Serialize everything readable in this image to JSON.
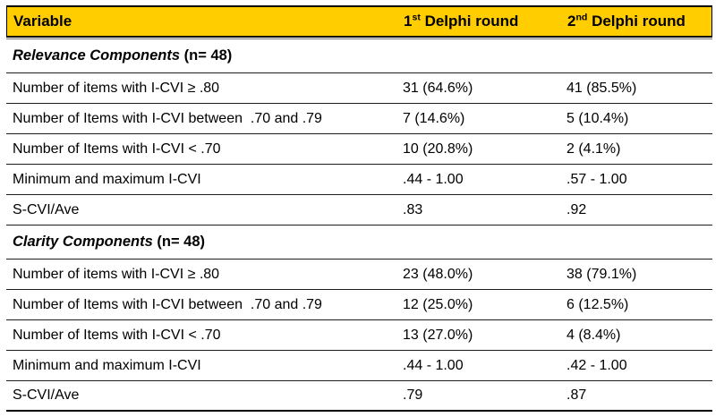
{
  "table": {
    "colors": {
      "header_bg": "#FFCD00",
      "border": "#000000",
      "row_rule": "#1c1c1c"
    },
    "header": {
      "variable_label": "Variable",
      "round1": {
        "num": "1",
        "sup": "st",
        "rest": " Delphi round"
      },
      "round2": {
        "num": "2",
        "sup": "nd",
        "rest": " Delphi round"
      }
    },
    "sections": [
      {
        "title_italic": "Relevance Components",
        "title_rest": " (n= 48)",
        "rows": [
          {
            "variable": "Number of items with I-CVI ≥ .80",
            "round1": "31 (64.6%)",
            "round2": "41 (85.5%)"
          },
          {
            "variable": "Number of Items with I-CVI between  .70 and .79",
            "round1": "7 (14.6%)",
            "round2": "5 (10.4%)"
          },
          {
            "variable": "Number of Items with I-CVI < .70",
            "round1": "10 (20.8%)",
            "round2": "2 (4.1%)"
          },
          {
            "variable": "Minimum and maximum I-CVI",
            "round1": ".44 - 1.00",
            "round2": ".57 - 1.00"
          },
          {
            "variable": "S-CVI/Ave",
            "round1": ".83",
            "round2": ".92"
          }
        ]
      },
      {
        "title_italic": "Clarity Components",
        "title_rest": " (n= 48)",
        "rows": [
          {
            "variable": "Number of items with I-CVI ≥ .80",
            "round1": "23 (48.0%)",
            "round2": "38 (79.1%)"
          },
          {
            "variable": "Number of Items with I-CVI between  .70 and .79",
            "round1": "12 (25.0%)",
            "round2": "6 (12.5%)"
          },
          {
            "variable": "Number of Items with I-CVI < .70",
            "round1": "13 (27.0%)",
            "round2": "4 (8.4%)"
          },
          {
            "variable": "Minimum and maximum I-CVI",
            "round1": ".44 - 1.00",
            "round2": ".42 - 1.00"
          },
          {
            "variable": "S-CVI/Ave",
            "round1": ".79",
            "round2": ".87"
          }
        ]
      }
    ]
  }
}
